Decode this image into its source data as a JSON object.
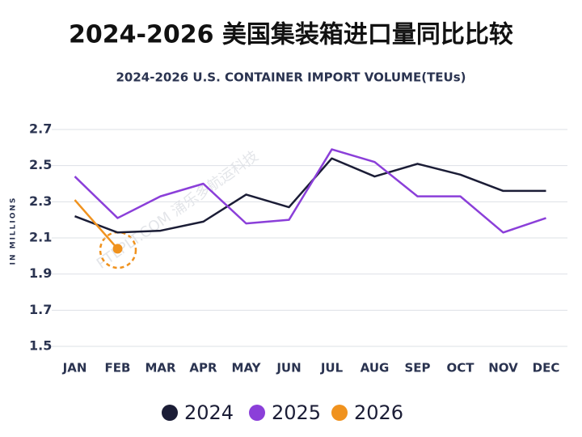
{
  "chart_data": {
    "type": "line",
    "title": "2024-2026 美国集装箱进口量同比比较",
    "subtitle": "2024-2026 U.S. CONTAINER IMPORT VOLUME(TEUs)",
    "y_label": "IN MILLIONS",
    "watermark": "PTLPLT.COM 涌乐多航运科技",
    "categories": [
      "JAN",
      "FEB",
      "MAR",
      "APR",
      "MAY",
      "JUN",
      "JUL",
      "AUG",
      "SEP",
      "OCT",
      "NOV",
      "DEC"
    ],
    "series": [
      {
        "name": "2024",
        "color": "#1b1d36",
        "values": [
          2.22,
          2.13,
          2.14,
          2.19,
          2.34,
          2.27,
          2.54,
          2.44,
          2.51,
          2.45,
          2.36,
          2.36
        ]
      },
      {
        "name": "2025",
        "color": "#8b3fd9",
        "values": [
          2.44,
          2.21,
          2.33,
          2.4,
          2.18,
          2.2,
          2.59,
          2.52,
          2.33,
          2.33,
          2.13,
          2.21
        ]
      },
      {
        "name": "2026",
        "color": "#f0921e",
        "values": [
          2.31,
          2.04,
          null,
          null,
          null,
          null,
          null,
          null,
          null,
          null,
          null,
          null
        ]
      }
    ],
    "ylim": [
      1.5,
      2.7
    ],
    "yticks": [
      1.5,
      1.7,
      1.9,
      2.1,
      2.3,
      2.5,
      2.7
    ],
    "grid": true
  }
}
